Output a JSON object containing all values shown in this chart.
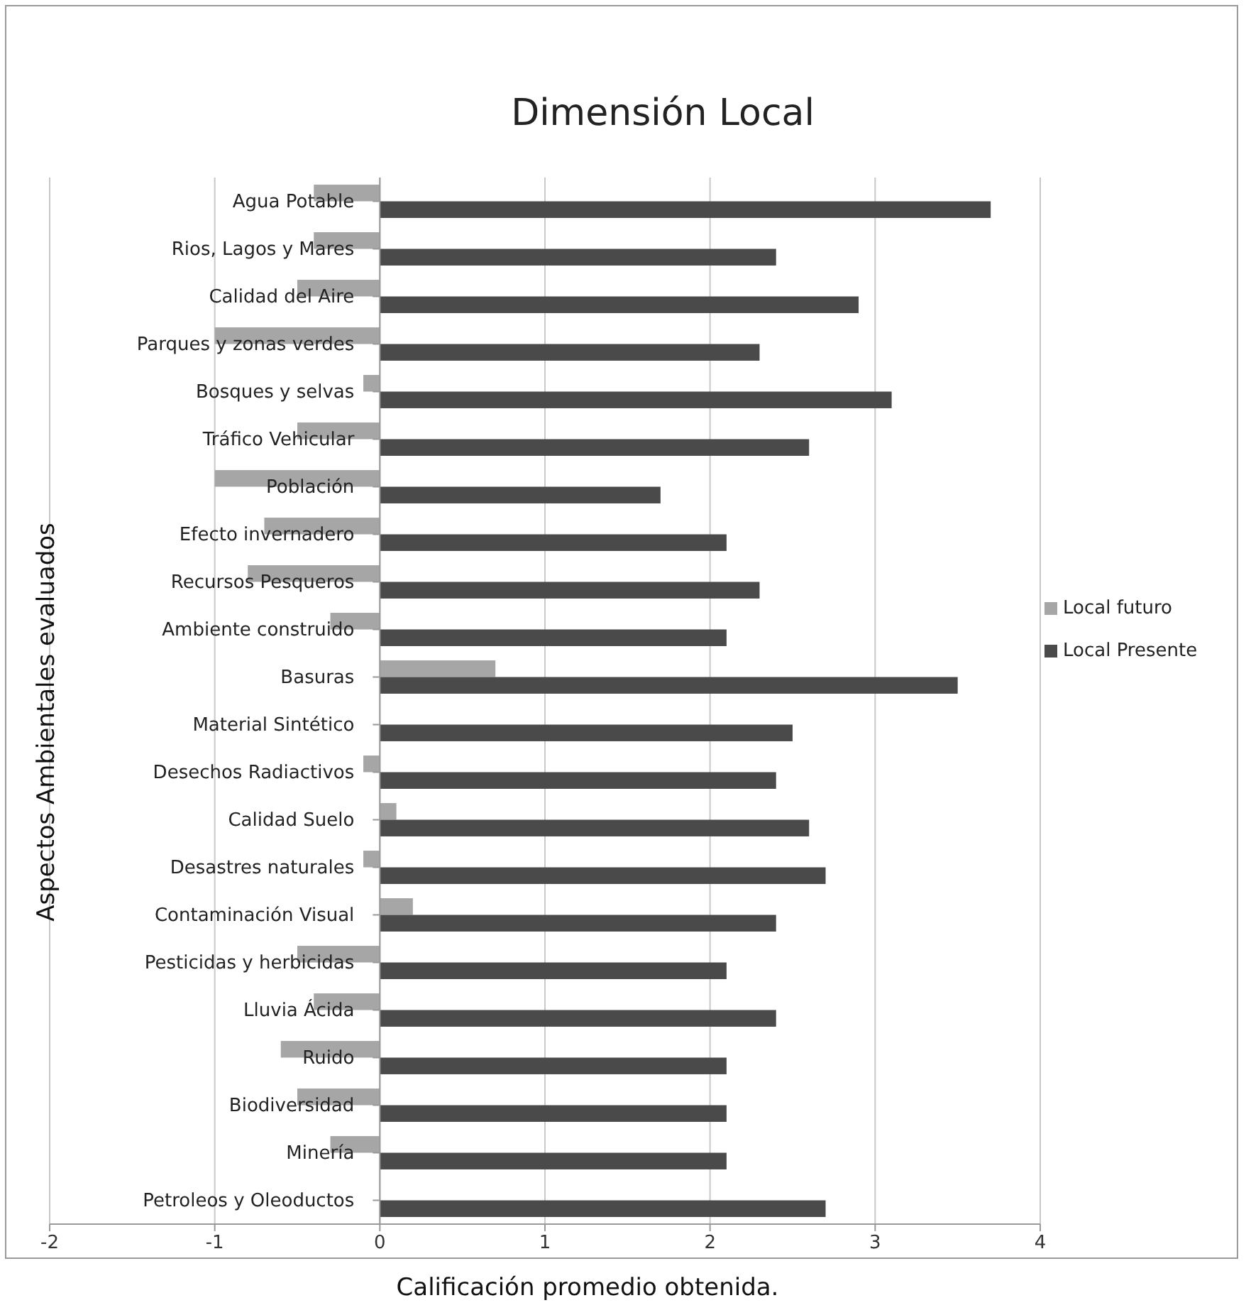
{
  "chart_data": {
    "type": "bar",
    "orientation": "horizontal",
    "title": "Dimensión Local",
    "xlabel": "Calificación promedio obtenida.",
    "ylabel": "Aspectos Ambientales evaluados",
    "categories": [
      "Agua Potable",
      "Rios, Lagos y Mares",
      "Calidad del Aire",
      "Parques y zonas verdes",
      "Bosques y selvas",
      "Tráfico Vehicular",
      "Población",
      "Efecto invernadero",
      "Recursos Pesqueros",
      "Ambiente construido",
      "Basuras",
      "Material Sintético",
      "Desechos Radiactivos",
      "Calidad Suelo",
      "Desastres naturales",
      "Contaminación Visual",
      "Pesticidas y herbicidas",
      "Lluvia Ácida",
      "Ruido",
      "Biodiversidad",
      "Minería",
      "Petroleos y Oleoductos"
    ],
    "series": [
      {
        "name": "Local futuro",
        "color": "#a6a6a6",
        "values": [
          -0.4,
          -0.4,
          -0.5,
          -1.0,
          -0.1,
          -0.5,
          -1.0,
          -0.7,
          -0.8,
          -0.3,
          0.7,
          0,
          -0.1,
          0.1,
          -0.1,
          0.2,
          -0.5,
          -0.4,
          -0.6,
          -0.5,
          -0.3,
          0
        ]
      },
      {
        "name": "Local Presente",
        "color": "#4a4a4a",
        "values": [
          3.7,
          2.4,
          2.9,
          2.3,
          3.1,
          2.6,
          1.7,
          2.1,
          2.3,
          2.1,
          3.5,
          2.5,
          2.4,
          2.6,
          2.7,
          2.4,
          2.1,
          2.4,
          2.1,
          2.1,
          2.1,
          2.7
        ]
      }
    ],
    "xlim": [
      -2,
      4
    ],
    "xticks": [
      -2,
      -1,
      0,
      1,
      2,
      3,
      4
    ],
    "grid": "x",
    "legend": "right"
  }
}
